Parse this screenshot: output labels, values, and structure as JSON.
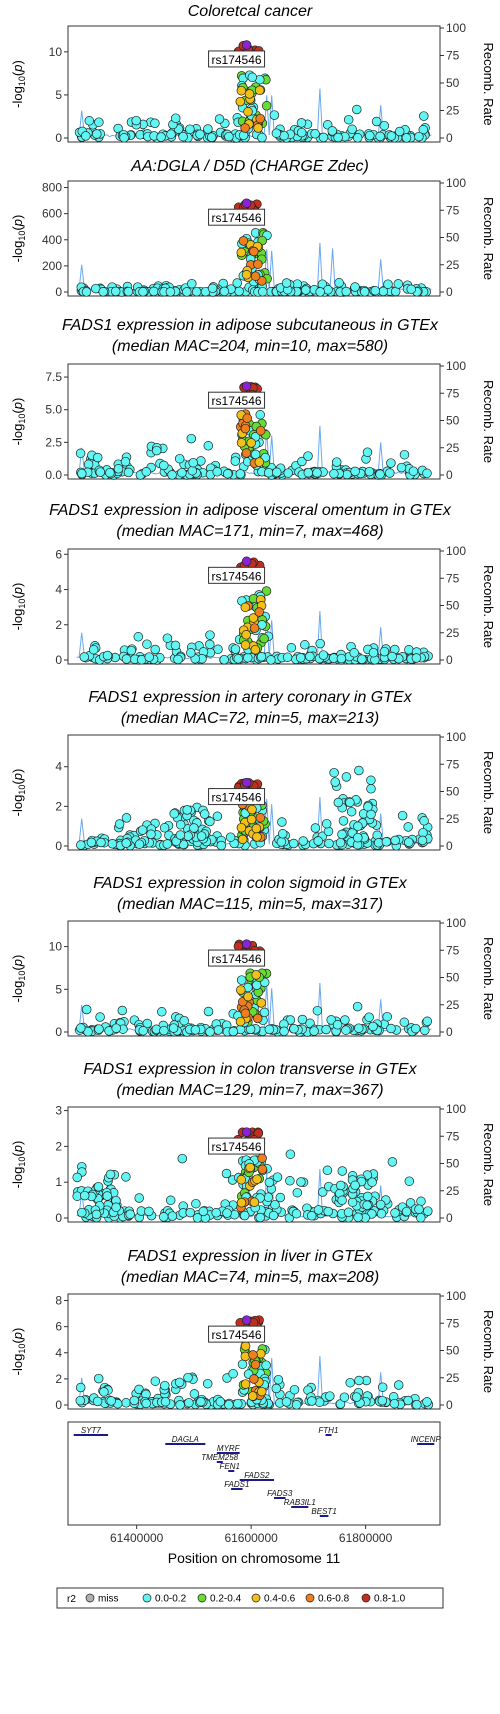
{
  "chart_data": {
    "type": "scatter",
    "lead_snp": "rs174546",
    "y2label": "Recomb. Rate",
    "y2ticks": [
      0,
      25,
      50,
      75,
      100
    ],
    "panels": [
      {
        "title": [
          "Coloretcal cancer"
        ],
        "ylim": [
          0,
          13
        ],
        "yticks": [
          0,
          5,
          10
        ],
        "yticklabels": [
          "0",
          "5",
          "10"
        ],
        "peak": 10.8,
        "bg": 1.0,
        "bgmax": 3.5,
        "clusters": []
      },
      {
        "title": [
          "AA:DGLA / D5D (CHARGE Zdec)"
        ],
        "ylim": [
          0,
          850
        ],
        "yticks": [
          0,
          200,
          400,
          600,
          800
        ],
        "yticklabels": [
          "0",
          "200",
          "400",
          "600",
          "800"
        ],
        "peak": 680,
        "bg": 10,
        "bgmax": 110,
        "clusters": []
      },
      {
        "title": [
          "FADS1 expression in adipose subcutaneous in GTEx",
          "(median MAC=204, min=10, max=580)"
        ],
        "ylim": [
          0,
          8.5
        ],
        "yticks": [
          0,
          2.5,
          5,
          7.5
        ],
        "yticklabels": [
          "0.0",
          "2.5",
          "5.0",
          "7.5"
        ],
        "peak": 6.8,
        "bg": 0.6,
        "bgmax": 3.0,
        "clusters": []
      },
      {
        "title": [
          "FADS1 expression in adipose visceral omentum in GTEx",
          "(median MAC=171, min=7, max=468)"
        ],
        "ylim": [
          0,
          6.3
        ],
        "yticks": [
          0,
          2,
          4,
          6
        ],
        "yticklabels": [
          "0",
          "2",
          "4",
          "6"
        ],
        "peak": 5.6,
        "bg": 0.5,
        "bgmax": 1.6,
        "clusters": []
      },
      {
        "title": [
          "FADS1 expression in artery coronary in GTEx",
          "(median MAC=72, min=5, max=213)"
        ],
        "ylim": [
          0,
          5.6
        ],
        "yticks": [
          0,
          2,
          4
        ],
        "yticklabels": [
          "0",
          "2",
          "4"
        ],
        "peak": 3.2,
        "bg": 0.6,
        "bgmax": 2.4,
        "clusters": [
          [
            61500000,
            1.6,
            2.6
          ],
          [
            61780000,
            2.6,
            4.4
          ]
        ]
      },
      {
        "title": [
          "FADS1 expression in colon sigmoid in GTEx",
          "(median MAC=115, min=5, max=317)"
        ],
        "ylim": [
          0,
          13
        ],
        "yticks": [
          0,
          5,
          10
        ],
        "yticklabels": [
          "0",
          "5",
          "10"
        ],
        "peak": 10.3,
        "bg": 0.8,
        "bgmax": 3.3,
        "clusters": []
      },
      {
        "title": [
          "FADS1 expression in colon transverse in GTEx",
          "(median MAC=129, min=7, max=367)"
        ],
        "ylim": [
          0,
          3.1
        ],
        "yticks": [
          0,
          1,
          2,
          3
        ],
        "yticklabels": [
          "0",
          "1",
          "2",
          "3"
        ],
        "peak": 2.4,
        "bg": 0.5,
        "bgmax": 2.1,
        "clusters": [
          [
            61330000,
            0.8,
            2.0
          ],
          [
            61780000,
            0.8,
            2.2
          ]
        ]
      },
      {
        "title": [
          "FADS1 expression in liver in GTEx",
          "(median MAC=74, min=5, max=208)"
        ],
        "ylim": [
          0,
          8.5
        ],
        "yticks": [
          0,
          2,
          4,
          6,
          8
        ],
        "yticklabels": [
          "0",
          "2",
          "4",
          "6",
          "8"
        ],
        "peak": 6.5,
        "bg": 0.7,
        "bgmax": 2.7,
        "clusters": []
      }
    ],
    "x": {
      "min": 61280000,
      "max": 61930000,
      "ticks": [
        61400000,
        61600000,
        61800000
      ],
      "ticklabels": [
        "61400000",
        "61600000",
        "61800000"
      ],
      "label": "Position on chromosome 11"
    },
    "genes": [
      {
        "name": "SYT7",
        "start": 61290000,
        "end": 61350000,
        "row": 0
      },
      {
        "name": "FTH1",
        "start": 61730000,
        "end": 61740000,
        "row": 0
      },
      {
        "name": "INCENP",
        "start": 61890000,
        "end": 61920000,
        "row": 1
      },
      {
        "name": "DAGLA",
        "start": 61450000,
        "end": 61520000,
        "row": 1
      },
      {
        "name": "MYRF",
        "start": 61540000,
        "end": 61580000,
        "row": 2
      },
      {
        "name": "TMEM258",
        "start": 61540000,
        "end": 61550000,
        "row": 3
      },
      {
        "name": "FEN1",
        "start": 61560000,
        "end": 61565000,
        "row": 4
      },
      {
        "name": "FADS2",
        "start": 61580000,
        "end": 61640000,
        "row": 5
      },
      {
        "name": "FADS1",
        "start": 61565000,
        "end": 61585000,
        "row": 6
      },
      {
        "name": "FADS3",
        "start": 61640000,
        "end": 61660000,
        "row": 7
      },
      {
        "name": "RAB3IL1",
        "start": 61670000,
        "end": 61700000,
        "row": 8
      },
      {
        "name": "BEST1",
        "start": 61720000,
        "end": 61735000,
        "row": 9
      }
    ],
    "legend": {
      "title": "r2",
      "items": [
        {
          "label": "miss",
          "color": "#b0b0b0"
        },
        {
          "label": "0.0-0.2",
          "color": "#5ff6f3"
        },
        {
          "label": "0.2-0.4",
          "color": "#66dd33"
        },
        {
          "label": "0.4-0.6",
          "color": "#f2c018"
        },
        {
          "label": "0.6-0.8",
          "color": "#ee7f1c"
        },
        {
          "label": "0.8-1.0",
          "color": "#c2301d"
        }
      ]
    },
    "lead_color": "#8b22d6",
    "recomb_color": "#6aa9f0"
  }
}
